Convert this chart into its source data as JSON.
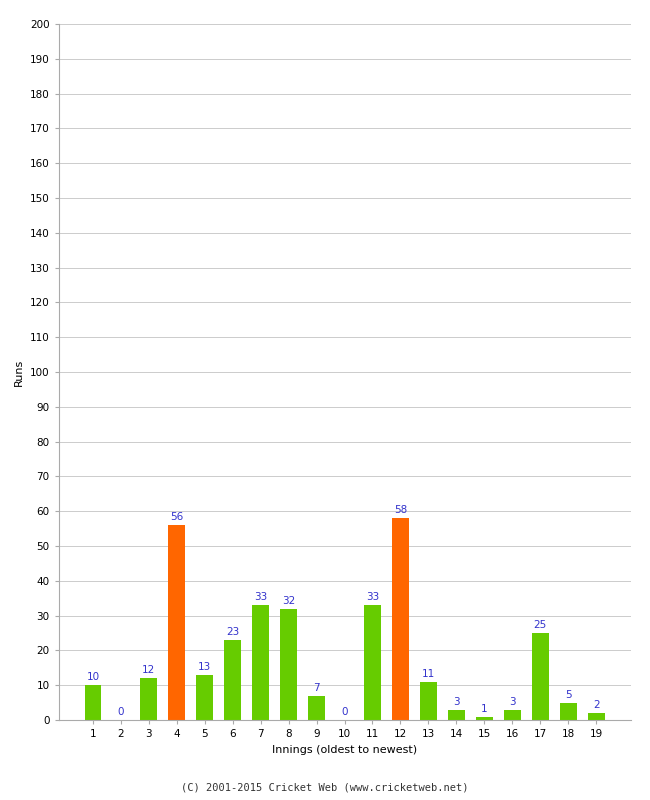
{
  "innings": [
    1,
    2,
    3,
    4,
    5,
    6,
    7,
    8,
    9,
    10,
    11,
    12,
    13,
    14,
    15,
    16,
    17,
    18,
    19
  ],
  "runs": [
    10,
    0,
    12,
    56,
    13,
    23,
    33,
    32,
    7,
    0,
    33,
    58,
    11,
    3,
    1,
    3,
    25,
    5,
    2
  ],
  "colors": [
    "#66cc00",
    "#66cc00",
    "#66cc00",
    "#ff6600",
    "#66cc00",
    "#66cc00",
    "#66cc00",
    "#66cc00",
    "#66cc00",
    "#66cc00",
    "#66cc00",
    "#ff6600",
    "#66cc00",
    "#66cc00",
    "#66cc00",
    "#66cc00",
    "#66cc00",
    "#66cc00",
    "#66cc00"
  ],
  "xlabel": "Innings (oldest to newest)",
  "ylabel": "Runs",
  "ylim": [
    0,
    200
  ],
  "yticks": [
    0,
    10,
    20,
    30,
    40,
    50,
    60,
    70,
    80,
    90,
    100,
    110,
    120,
    130,
    140,
    150,
    160,
    170,
    180,
    190,
    200
  ],
  "label_color": "#3333cc",
  "label_fontsize": 7.5,
  "tick_fontsize": 7.5,
  "axis_label_fontsize": 8,
  "background_color": "#ffffff",
  "grid_color": "#cccccc",
  "footer": "(C) 2001-2015 Cricket Web (www.cricketweb.net)",
  "footer_fontsize": 7.5,
  "bar_width": 0.6
}
